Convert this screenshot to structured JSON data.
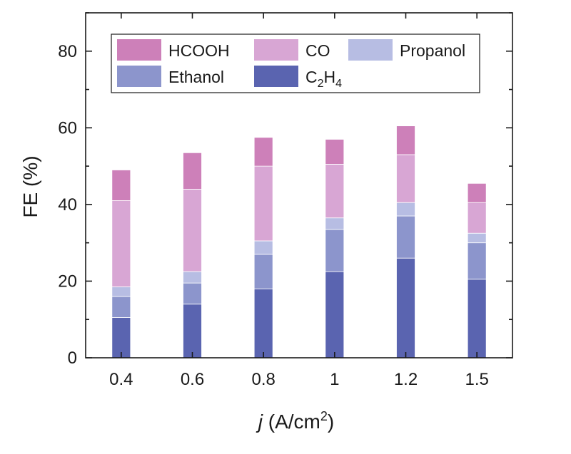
{
  "chart_data": {
    "type": "bar",
    "stacked": true,
    "categories": [
      "0.4",
      "0.6",
      "0.8",
      "1",
      "1.2",
      "1.5"
    ],
    "series": [
      {
        "name": "C2H4",
        "label": "C",
        "label_sub": "2",
        "label_mid": "H",
        "label_sub2": "4",
        "color": "#5a64b0",
        "values": [
          10.5,
          14,
          18,
          22.5,
          26,
          20.5
        ]
      },
      {
        "name": "Ethanol",
        "label": "Ethanol",
        "color": "#8c95cc",
        "values": [
          5.5,
          5.5,
          9,
          11,
          11,
          9.5
        ]
      },
      {
        "name": "Propanol",
        "label": "Propanol",
        "color": "#b7bde3",
        "values": [
          2.5,
          3,
          3.5,
          3,
          3.5,
          2.5
        ]
      },
      {
        "name": "CO",
        "label": "CO",
        "color": "#d8a6d4",
        "values": [
          22.5,
          21.5,
          19.5,
          14,
          12.5,
          8
        ]
      },
      {
        "name": "HCOOH",
        "label": "HCOOH",
        "color": "#cd80b9",
        "values": [
          8,
          9.5,
          7.5,
          6.5,
          7.5,
          5
        ]
      }
    ],
    "legend_order": [
      "HCOOH",
      "CO",
      "Propanol",
      "Ethanol",
      "C2H4"
    ],
    "legend_position": "top",
    "ylim": [
      0,
      90
    ],
    "yticks": [
      0,
      20,
      40,
      60,
      80
    ],
    "ylabel": "FE (%)",
    "xlabel_italic": "j",
    "xlabel_main": " (A/cm",
    "xlabel_sup": "2",
    "xlabel_end": ")",
    "title": ""
  }
}
